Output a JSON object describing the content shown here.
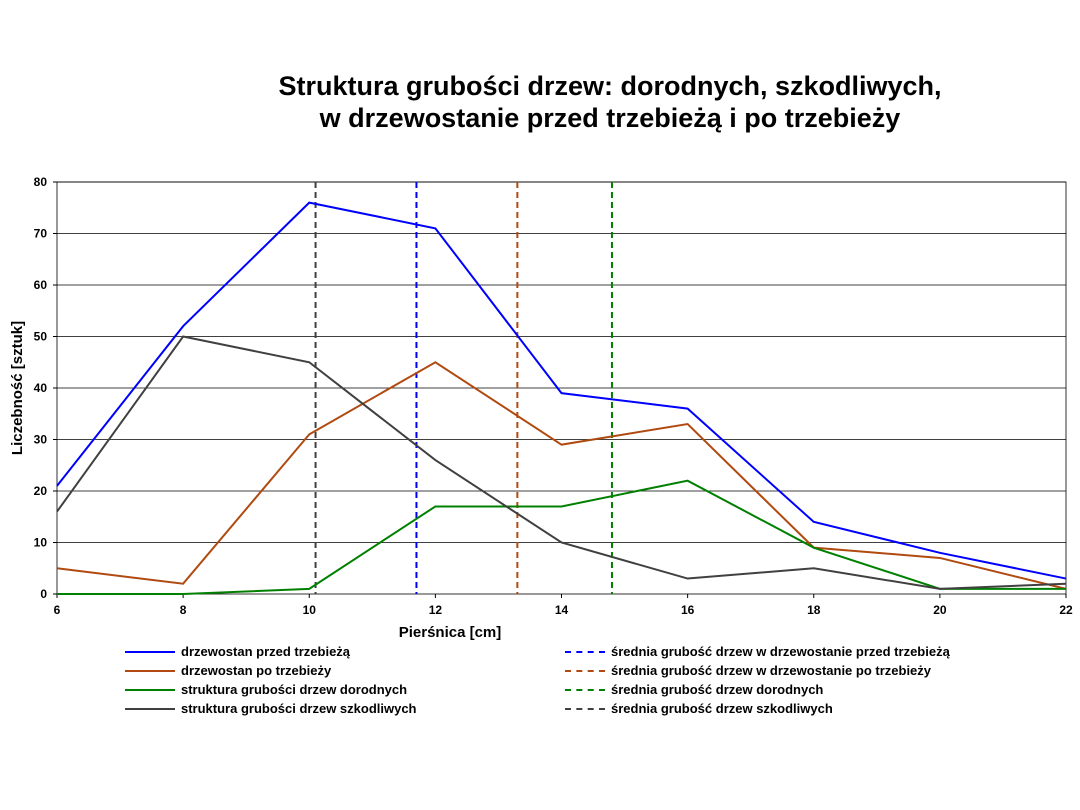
{
  "chart_data": {
    "type": "line",
    "title": "Struktura grubości drzew: dorodnych, szkodliwych,",
    "title_line2": "w drzewostanie przed trzebieżą i po trzebieży",
    "xlabel": "Pierśnica [cm]",
    "ylabel": "Liczebność [sztuk]",
    "x": [
      6,
      8,
      10,
      12,
      14,
      16,
      18,
      20,
      22
    ],
    "xlim": [
      6,
      22
    ],
    "ylim": [
      0,
      80
    ],
    "xticks": [
      "6",
      "8",
      "10",
      "12",
      "14",
      "16",
      "18",
      "20",
      "22"
    ],
    "yticks": [
      "0",
      "10",
      "20",
      "30",
      "40",
      "50",
      "60",
      "70",
      "80"
    ],
    "grid": true,
    "legend_position": "bottom",
    "series": [
      {
        "name": "drzewostan przed trzebieżą",
        "color": "#0000ff",
        "values": [
          21,
          52,
          76,
          71,
          39,
          36,
          14,
          8,
          3
        ]
      },
      {
        "name": "drzewostan po trzebieży",
        "color": "#b04a10",
        "values": [
          5,
          2,
          31,
          45,
          29,
          33,
          9,
          7,
          1
        ]
      },
      {
        "name": "struktura grubości drzew dorodnych",
        "color": "#008000",
        "values": [
          0,
          0,
          1,
          17,
          17,
          22,
          9,
          1,
          1
        ]
      },
      {
        "name": "struktura grubości drzew szkodliwych",
        "color": "#404040",
        "values": [
          16,
          50,
          45,
          26,
          10,
          3,
          5,
          1,
          2
        ]
      }
    ],
    "vlines": [
      {
        "name": "średnia grubość drzew w drzewostanie przed trzebieżą",
        "color": "#0000ff",
        "x": 11.7
      },
      {
        "name": "średnia grubość drzew w drzewostanie po trzebieży",
        "color": "#b04a10",
        "x": 13.3
      },
      {
        "name": "średnia grubość drzew dorodnych",
        "color": "#008000",
        "x": 14.8
      },
      {
        "name": "średnia grubość drzew szkodliwych",
        "color": "#404040",
        "x": 10.1
      }
    ]
  }
}
